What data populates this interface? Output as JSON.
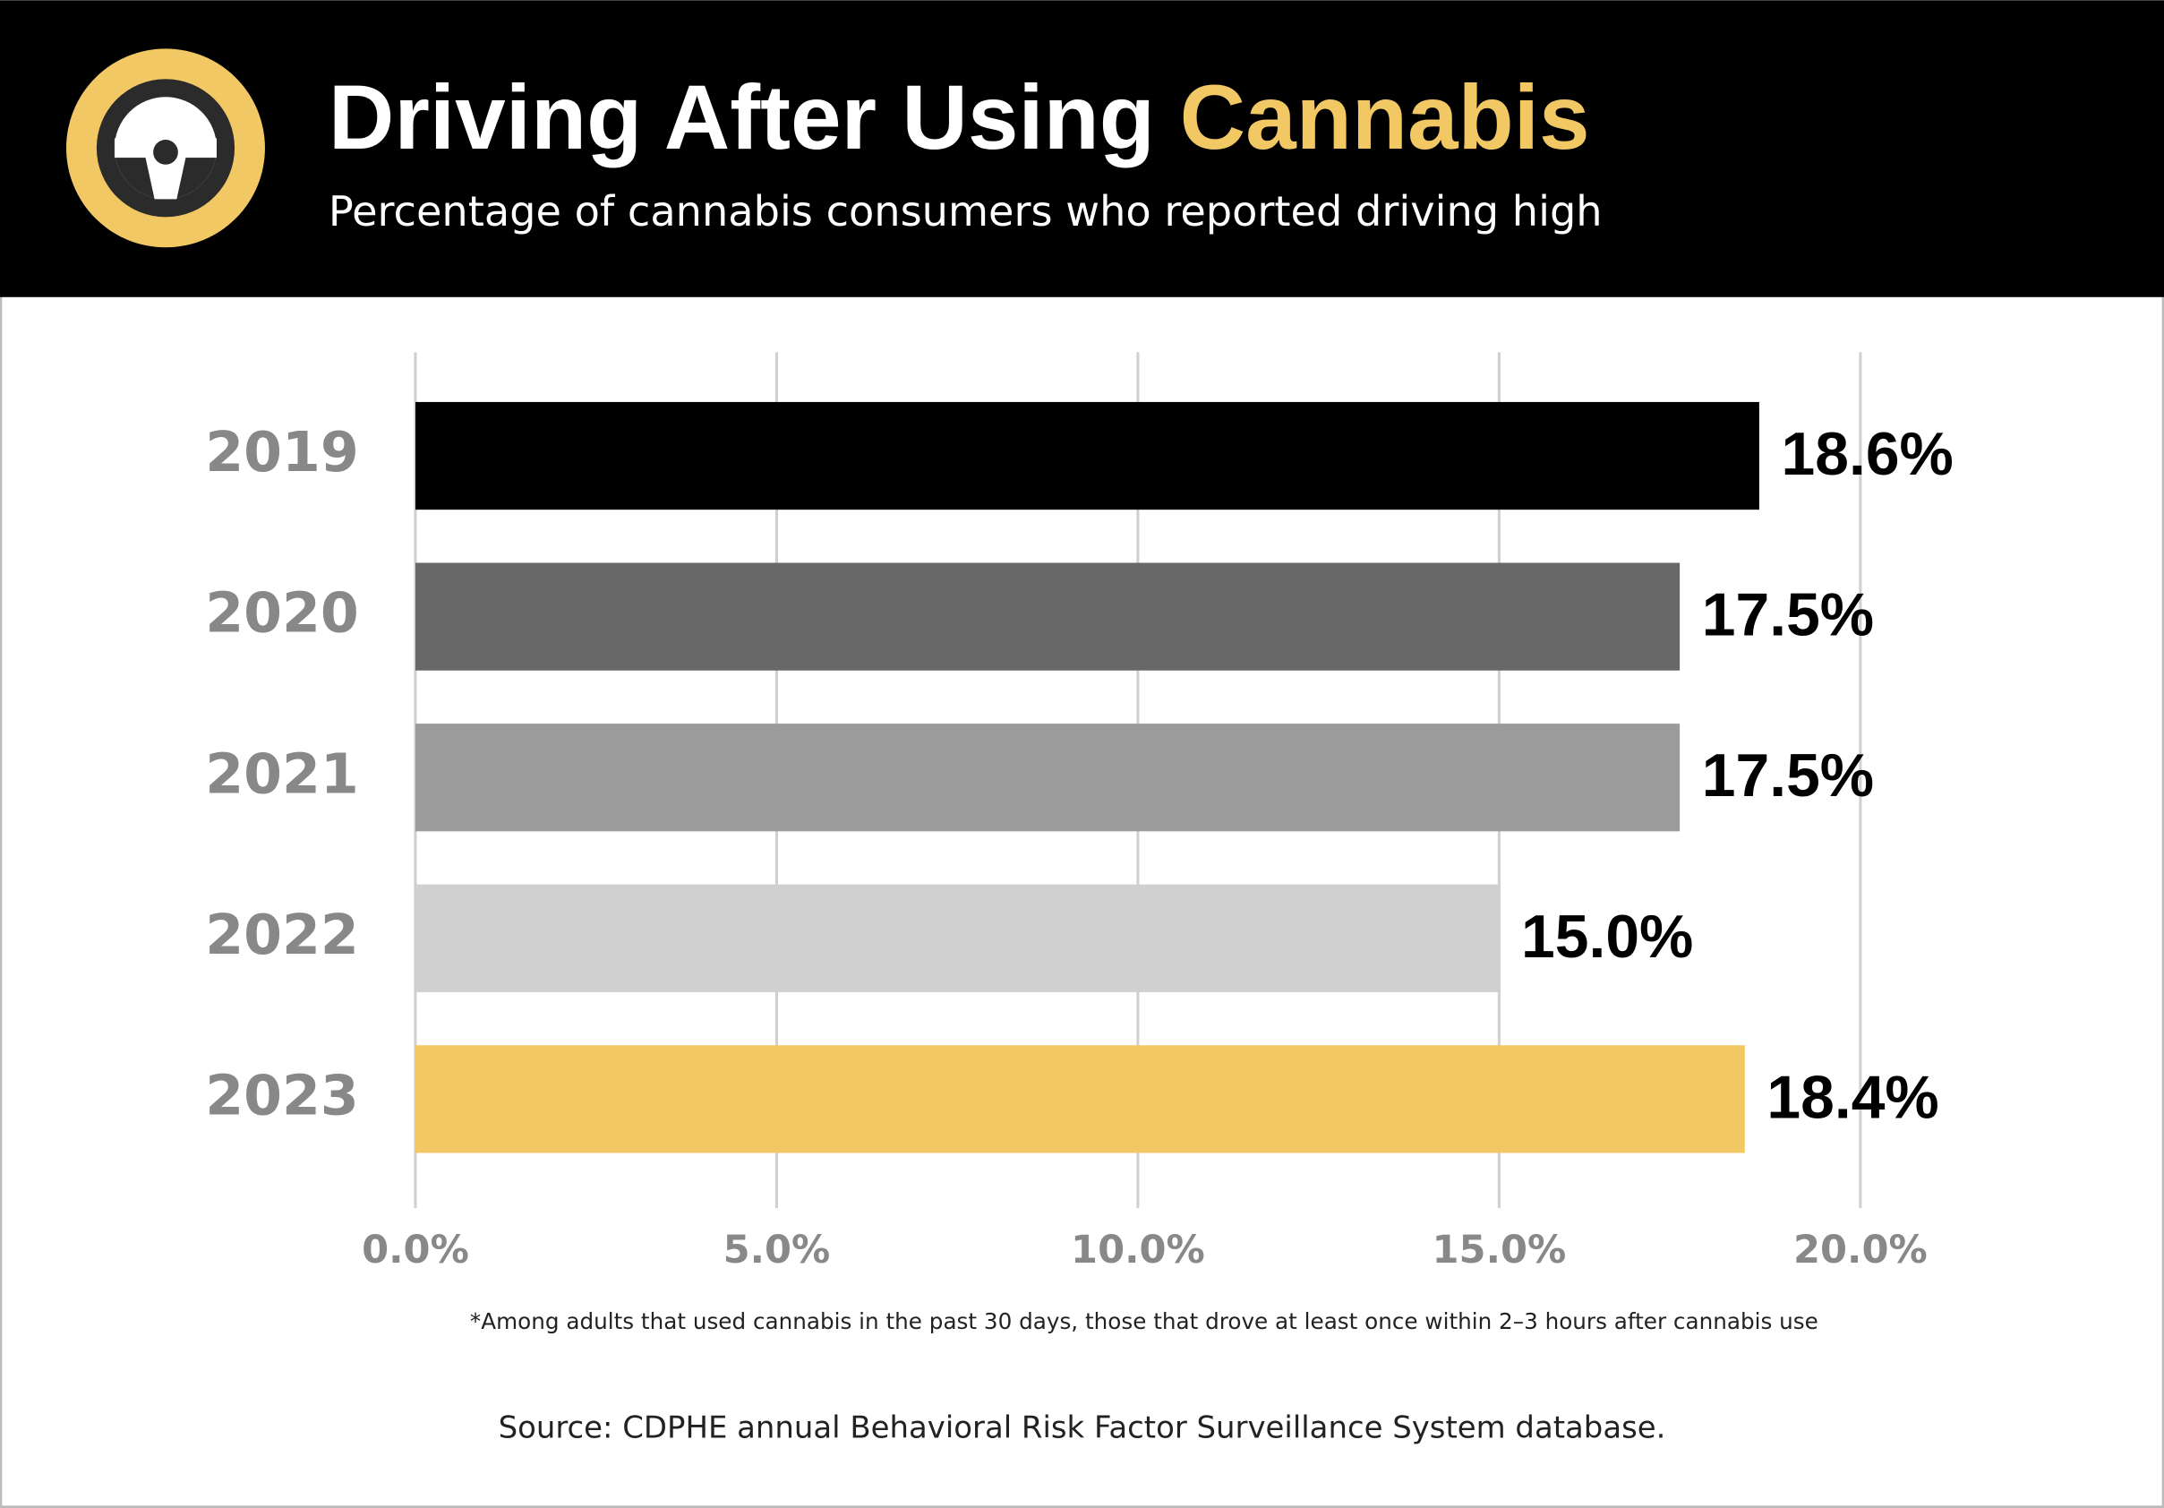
{
  "chart_data": {
    "type": "bar",
    "orientation": "horizontal",
    "title_parts": [
      "Driving After Using",
      "Cannabis"
    ],
    "title_colors": [
      "#ffffff",
      "#f2c865"
    ],
    "subtitle": "Percentage of cannabis consumers who reported driving high",
    "categories": [
      "2019",
      "2020",
      "2021",
      "2022",
      "2023"
    ],
    "values": [
      18.6,
      17.5,
      17.5,
      15.0,
      18.4
    ],
    "value_labels": [
      "18.6%",
      "17.5%",
      "17.5%",
      "15.0%",
      "18.4%"
    ],
    "colors": [
      "#000000",
      "#686868",
      "#9b9b9b",
      "#d0d0d0",
      "#f2c865"
    ],
    "xlim": [
      0,
      20
    ],
    "xticks": [
      {
        "value": 0,
        "label": "0.0%"
      },
      {
        "value": 5,
        "label": "5.0%"
      },
      {
        "value": 10,
        "label": "10.0%"
      },
      {
        "value": 15,
        "label": "15.0%"
      },
      {
        "value": 20,
        "label": "20.0%"
      }
    ],
    "grid": true,
    "footnote": "*Among adults that used cannabis in the past 30 days, those that drove at least once within 2–3 hours after cannabis use",
    "source": "Source: CDPHE annual Behavioral Risk Factor Surveillance System database."
  }
}
